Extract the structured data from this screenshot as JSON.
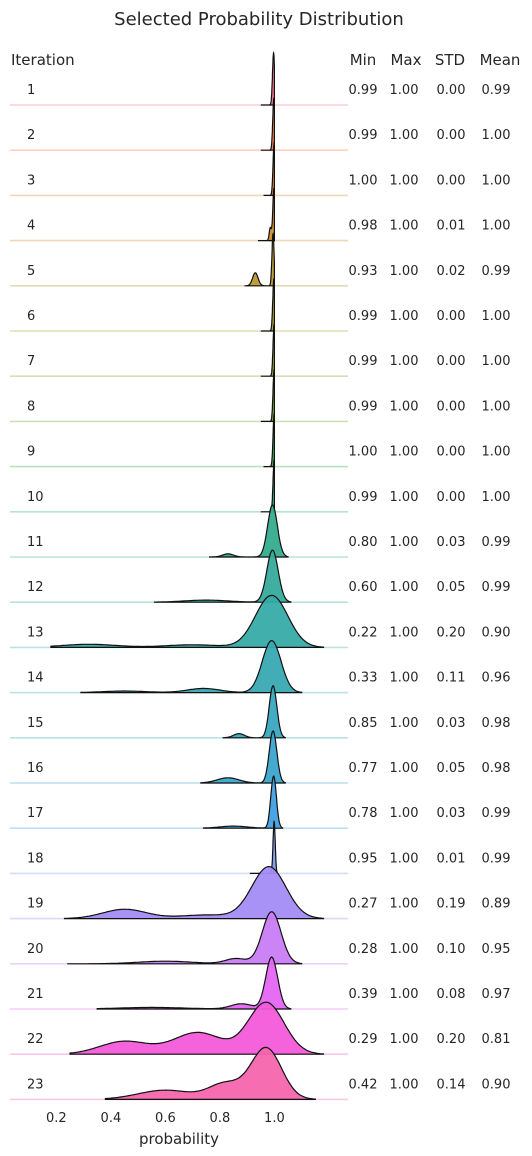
{
  "chart_data": {
    "type": "ridgeline",
    "title": "Selected Probability Distribution",
    "xlabel": "probability",
    "xlim": [
      0.03,
      1.27
    ],
    "xticks": [
      "0.2",
      "0.4",
      "0.6",
      "0.8",
      "1.0"
    ],
    "row_header": "Iteration",
    "stat_headers": [
      "Min",
      "Max",
      "STD",
      "Mean"
    ],
    "grid": false,
    "series": [
      {
        "iteration": "1",
        "color": "#f77189",
        "min": "0.99",
        "max": "1.00",
        "std": "0.00",
        "mean": "0.99",
        "peak": 0.997,
        "mx": 1.0,
        "tails": []
      },
      {
        "iteration": "2",
        "color": "#f57b48",
        "min": "0.99",
        "max": "1.00",
        "std": "0.00",
        "mean": "1.00",
        "peak": 0.998,
        "mx": 1.0,
        "tails": []
      },
      {
        "iteration": "3",
        "color": "#e58431",
        "min": "1.00",
        "max": "1.00",
        "std": "0.00",
        "mean": "1.00",
        "peak": 0.999,
        "mx": 1.0,
        "tails": []
      },
      {
        "iteration": "4",
        "color": "#d08c31",
        "min": "0.98",
        "max": "1.00",
        "std": "0.01",
        "mean": "1.00",
        "peak": 0.998,
        "mx": 1.0,
        "tails": [
          [
            0.985,
            0.25,
            0.004
          ]
        ]
      },
      {
        "iteration": "5",
        "color": "#bb9832",
        "min": "0.93",
        "max": "1.00",
        "std": "0.02",
        "mean": "0.99",
        "peak": 0.995,
        "mx": 1.0,
        "tails": [
          [
            0.93,
            0.25,
            0.01
          ]
        ]
      },
      {
        "iteration": "6",
        "color": "#a69c32",
        "min": "0.99",
        "max": "1.00",
        "std": "0.00",
        "mean": "1.00",
        "peak": 0.998,
        "mx": 1.0,
        "tails": []
      },
      {
        "iteration": "7",
        "color": "#8ea232",
        "min": "0.99",
        "max": "1.00",
        "std": "0.00",
        "mean": "1.00",
        "peak": 0.999,
        "mx": 1.0,
        "tails": []
      },
      {
        "iteration": "8",
        "color": "#6aa832",
        "min": "0.99",
        "max": "1.00",
        "std": "0.00",
        "mean": "1.00",
        "peak": 0.999,
        "mx": 1.0,
        "tails": []
      },
      {
        "iteration": "9",
        "color": "#33b04f",
        "min": "1.00",
        "max": "1.00",
        "std": "0.00",
        "mean": "1.00",
        "peak": 0.999,
        "mx": 1.0,
        "tails": []
      },
      {
        "iteration": "10",
        "color": "#34ae7a",
        "min": "0.99",
        "max": "1.00",
        "std": "0.00",
        "mean": "1.00",
        "peak": 0.999,
        "mx": 1.0,
        "tails": []
      },
      {
        "iteration": "11",
        "color": "#35ac8e",
        "min": "0.80",
        "max": "1.00",
        "std": "0.03",
        "mean": "0.99",
        "peak": 0.993,
        "mx": 1.05,
        "tails": [
          [
            0.83,
            0.06,
            0.02
          ]
        ]
      },
      {
        "iteration": "12",
        "color": "#36ab9c",
        "min": "0.60",
        "max": "1.00",
        "std": "0.05",
        "mean": "0.99",
        "peak": 0.993,
        "mx": 1.06,
        "tails": [
          [
            0.75,
            0.04,
            0.08
          ]
        ]
      },
      {
        "iteration": "13",
        "color": "#37aba7",
        "min": "0.22",
        "max": "1.00",
        "std": "0.20",
        "mean": "0.90",
        "peak": 0.99,
        "mx": 1.18,
        "tails": [
          [
            0.32,
            0.06,
            0.1
          ],
          [
            0.7,
            0.05,
            0.1
          ]
        ]
      },
      {
        "iteration": "14",
        "color": "#38a9b3",
        "min": "0.33",
        "max": "1.00",
        "std": "0.11",
        "mean": "0.96",
        "peak": 0.99,
        "mx": 1.1,
        "tails": [
          [
            0.45,
            0.03,
            0.08
          ],
          [
            0.74,
            0.08,
            0.06
          ]
        ]
      },
      {
        "iteration": "15",
        "color": "#39a7bf",
        "min": "0.85",
        "max": "1.00",
        "std": "0.03",
        "mean": "0.98",
        "peak": 0.995,
        "mx": 1.04,
        "tails": [
          [
            0.87,
            0.08,
            0.02
          ]
        ]
      },
      {
        "iteration": "16",
        "color": "#3ba4cd",
        "min": "0.77",
        "max": "1.00",
        "std": "0.05",
        "mean": "0.98",
        "peak": 0.995,
        "mx": 1.04,
        "tails": [
          [
            0.83,
            0.1,
            0.04
          ]
        ]
      },
      {
        "iteration": "17",
        "color": "#41a0e0",
        "min": "0.78",
        "max": "1.00",
        "std": "0.03",
        "mean": "0.99",
        "peak": 0.997,
        "mx": 1.03,
        "tails": [
          [
            0.85,
            0.04,
            0.05
          ]
        ]
      },
      {
        "iteration": "18",
        "color": "#7d9bec",
        "min": "0.95",
        "max": "1.00",
        "std": "0.01",
        "mean": "0.99",
        "peak": 0.999,
        "mx": 1.01,
        "tails": []
      },
      {
        "iteration": "19",
        "color": "#a48cf4",
        "min": "0.27",
        "max": "1.00",
        "std": "0.19",
        "mean": "0.89",
        "peak": 0.98,
        "mx": 1.18,
        "tails": [
          [
            0.45,
            0.18,
            0.08
          ],
          [
            0.75,
            0.07,
            0.1
          ]
        ]
      },
      {
        "iteration": "20",
        "color": "#c97cf4",
        "min": "0.28",
        "max": "1.00",
        "std": "0.10",
        "mean": "0.95",
        "peak": 0.99,
        "mx": 1.1,
        "tails": [
          [
            0.6,
            0.05,
            0.1
          ],
          [
            0.86,
            0.1,
            0.04
          ]
        ]
      },
      {
        "iteration": "21",
        "color": "#e566f4",
        "min": "0.39",
        "max": "1.00",
        "std": "0.08",
        "mean": "0.97",
        "peak": 0.99,
        "mx": 1.06,
        "tails": [
          [
            0.55,
            0.03,
            0.12
          ],
          [
            0.88,
            0.1,
            0.04
          ]
        ]
      },
      {
        "iteration": "22",
        "color": "#f35ada",
        "min": "0.29",
        "max": "1.00",
        "std": "0.20",
        "mean": "0.81",
        "peak": 0.97,
        "mx": 1.18,
        "tails": [
          [
            0.45,
            0.25,
            0.09
          ],
          [
            0.72,
            0.42,
            0.09
          ]
        ]
      },
      {
        "iteration": "23",
        "color": "#f565ad",
        "min": "0.42",
        "max": "1.00",
        "std": "0.14",
        "mean": "0.90",
        "peak": 0.97,
        "mx": 1.15,
        "tails": [
          [
            0.6,
            0.18,
            0.1
          ],
          [
            0.82,
            0.3,
            0.06
          ]
        ]
      }
    ]
  }
}
